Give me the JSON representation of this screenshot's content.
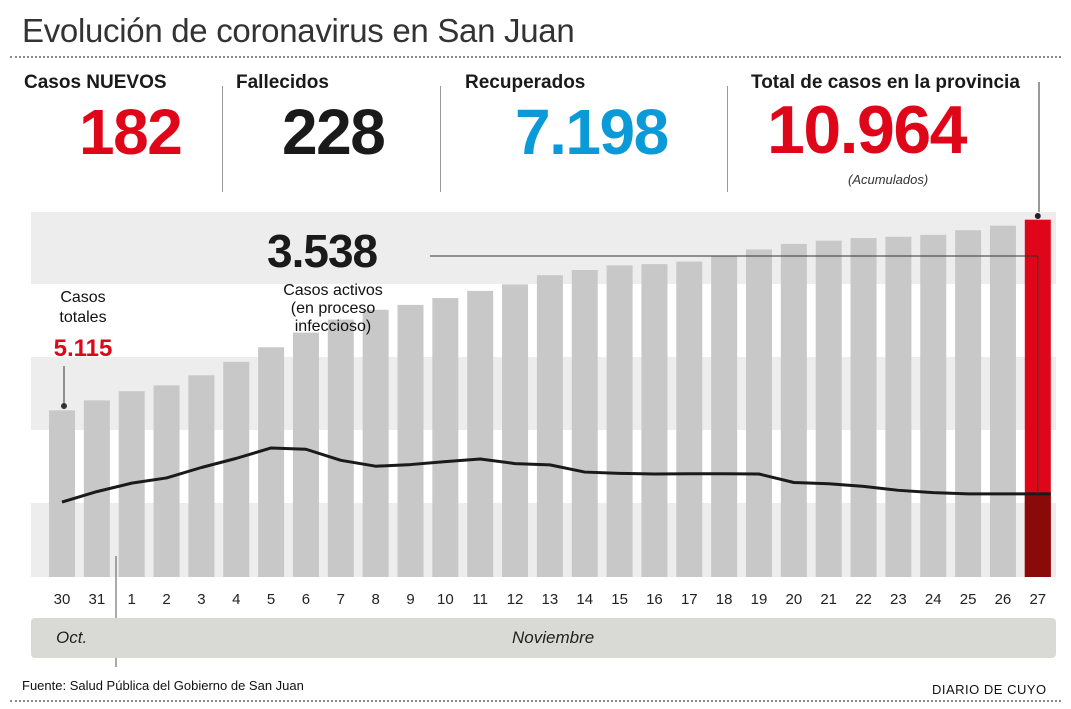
{
  "title": "Evolución de coronavirus en San Juan",
  "stats": {
    "nuevos": {
      "label": "Casos NUEVOS",
      "value": "182",
      "color": "#e0061a"
    },
    "fallecidos": {
      "label": "Fallecidos",
      "value": "228",
      "color": "#1a1a1a"
    },
    "recuperados": {
      "label": "Recuperados",
      "value": "7.198",
      "color": "#0a9ad8"
    },
    "total": {
      "label": "Total de casos en la provincia",
      "value": "10.964",
      "note": "(Acumulados)",
      "color": "#e0061a"
    }
  },
  "annotations": {
    "activos_value": "3.538",
    "activos_label": [
      "Casos activos",
      "(en proceso",
      "infeccioso)"
    ],
    "totales_label": [
      "Casos",
      "totales"
    ],
    "totales_value": "5.115"
  },
  "months": {
    "oct": "Oct.",
    "nov": "Noviembre"
  },
  "footer": {
    "source": "Fuente: Salud Pública del Gobierno de San Juan",
    "brand": "DIARIO DE CUYO"
  },
  "colors": {
    "bar": "#c8c8c8",
    "highlight_total": "#e0061a",
    "highlight_active": "#8a0a0a",
    "line": "#1a1a1a",
    "band": "#ededed"
  },
  "chart_data": {
    "type": "bar",
    "title": "Evolución de coronavirus en San Juan",
    "categories": [
      "30",
      "31",
      "1",
      "2",
      "3",
      "4",
      "5",
      "6",
      "7",
      "8",
      "9",
      "10",
      "11",
      "12",
      "13",
      "14",
      "15",
      "16",
      "17",
      "18",
      "19",
      "20",
      "21",
      "22",
      "23",
      "24",
      "25",
      "26",
      "27"
    ],
    "series": [
      {
        "name": "Casos totales",
        "type": "bar",
        "values": [
          5115,
          5420,
          5700,
          5880,
          6190,
          6600,
          7050,
          7500,
          7900,
          8200,
          8350,
          8560,
          8780,
          8980,
          9260,
          9420,
          9560,
          9600,
          9680,
          9850,
          10050,
          10220,
          10320,
          10400,
          10440,
          10500,
          10640,
          10780,
          10964
        ]
      },
      {
        "name": "Casos activos",
        "type": "line",
        "values": [
          2300,
          2620,
          2880,
          3040,
          3360,
          3640,
          3960,
          3920,
          3580,
          3400,
          3450,
          3540,
          3620,
          3480,
          3440,
          3220,
          3180,
          3160,
          3170,
          3170,
          3160,
          2900,
          2860,
          2780,
          2660,
          2590,
          2550,
          2550,
          3538
        ]
      }
    ],
    "ylim": [
      0,
      11200
    ],
    "xlabel": "",
    "ylabel": "",
    "grid": false,
    "highlight_index": 28,
    "annotations": [
      {
        "text": "3.538",
        "label": "Casos activos (en proceso infeccioso)"
      },
      {
        "text": "5.115",
        "label": "Casos totales"
      }
    ],
    "x_groups": [
      {
        "label": "Oct.",
        "from": "30",
        "to": "31"
      },
      {
        "label": "Noviembre",
        "from": "1",
        "to": "27"
      }
    ]
  }
}
